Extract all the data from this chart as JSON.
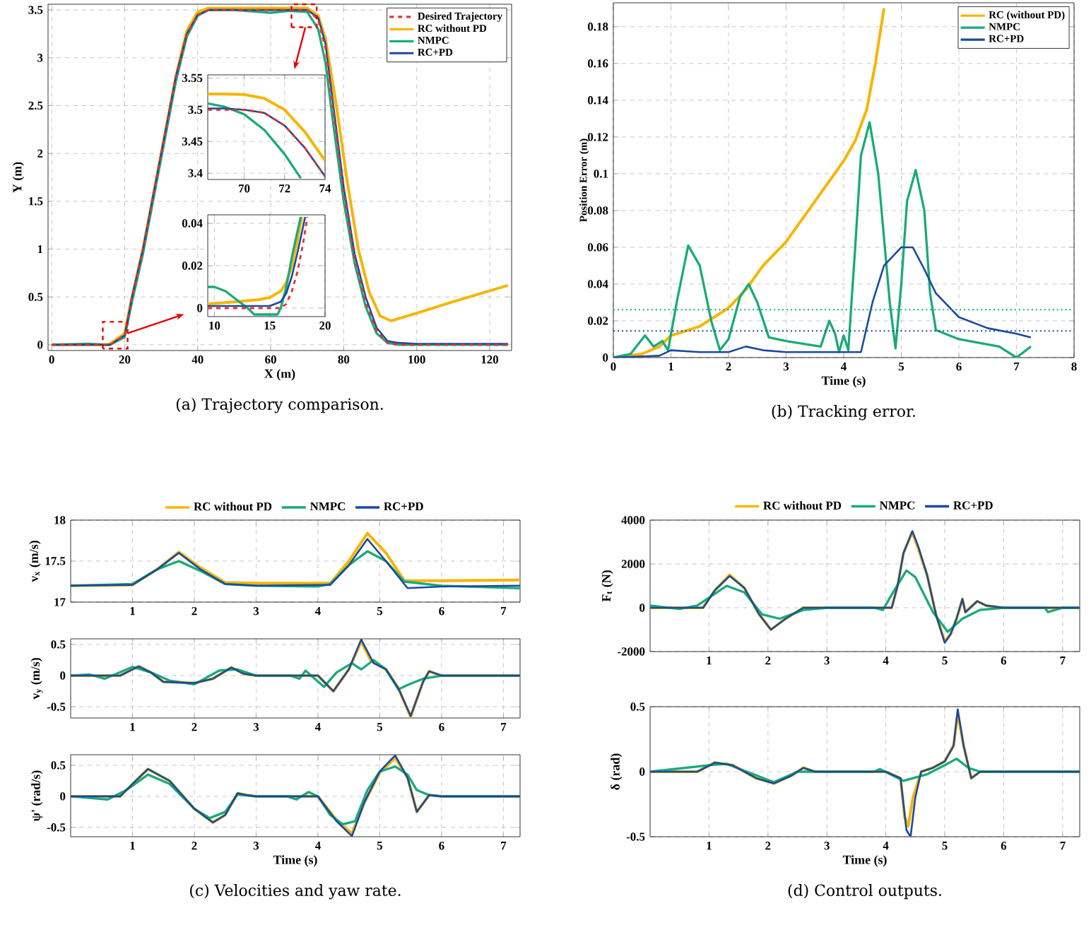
{
  "chart_data": [
    {
      "type": "line",
      "xlabel": "X (m)",
      "ylabel": "Y (m)",
      "xlim": [
        -1,
        126
      ],
      "ylim": [
        -0.06,
        3.56
      ],
      "xticks": [
        0,
        20,
        40,
        60,
        80,
        100,
        120
      ],
      "yticks": [
        0,
        0.5,
        1,
        1.5,
        2,
        2.5,
        3,
        3.5
      ],
      "grid": true,
      "legend": "top right",
      "annotations": [
        "(a) Trajectory comparison."
      ],
      "series": [
        {
          "name": "Desired Trajectory",
          "color": "#e8302a",
          "line_style": "dashed",
          "x": [
            0,
            15,
            16,
            20,
            22,
            25,
            28,
            31,
            34,
            37,
            40,
            43,
            50,
            60,
            70,
            73,
            75,
            77,
            80,
            83,
            86,
            89,
            92,
            95,
            100,
            125
          ],
          "values": [
            0,
            0,
            0,
            0.1,
            0.5,
            1.0,
            1.6,
            2.2,
            2.8,
            3.25,
            3.45,
            3.5,
            3.5,
            3.5,
            3.5,
            3.4,
            3.1,
            2.5,
            1.6,
            0.9,
            0.45,
            0.15,
            0.02,
            0,
            0,
            0
          ]
        },
        {
          "name": "RC without PD",
          "color": "#f7b500",
          "x": [
            0,
            15,
            16,
            20,
            22,
            25,
            28,
            31,
            34,
            37,
            40,
            43,
            50,
            60,
            70,
            73,
            75,
            78,
            81,
            84,
            87,
            90,
            93,
            100,
            110,
            125
          ],
          "values": [
            0,
            0,
            0.01,
            0.12,
            0.5,
            1.0,
            1.6,
            2.2,
            2.8,
            3.28,
            3.48,
            3.52,
            3.52,
            3.52,
            3.52,
            3.44,
            3.2,
            2.5,
            1.7,
            1.0,
            0.55,
            0.3,
            0.25,
            0.33,
            0.45,
            0.62
          ]
        },
        {
          "name": "NMPC",
          "color": "#1aaa7a",
          "x": [
            0,
            10,
            15,
            16,
            20,
            22,
            25,
            28,
            31,
            34,
            37,
            40,
            43,
            50,
            60,
            65,
            70,
            73,
            75,
            77,
            80,
            83,
            86,
            89,
            92,
            95,
            100,
            125
          ],
          "values": [
            0,
            0.01,
            0,
            0,
            0.08,
            0.45,
            0.95,
            1.55,
            2.15,
            2.75,
            3.22,
            3.44,
            3.5,
            3.5,
            3.47,
            3.49,
            3.48,
            3.3,
            2.95,
            2.35,
            1.5,
            0.85,
            0.4,
            0.12,
            0.02,
            0,
            0,
            0
          ]
        },
        {
          "name": "RC+PD",
          "color": "#1a4aa0",
          "x": [
            0,
            15,
            16,
            20,
            22,
            25,
            28,
            31,
            34,
            37,
            40,
            43,
            50,
            60,
            70,
            73,
            75,
            77,
            80,
            83,
            86,
            89,
            92,
            95,
            100,
            125
          ],
          "values": [
            0,
            0,
            0,
            0.1,
            0.5,
            1.0,
            1.6,
            2.2,
            2.8,
            3.25,
            3.45,
            3.5,
            3.5,
            3.5,
            3.5,
            3.42,
            3.15,
            2.55,
            1.65,
            0.95,
            0.5,
            0.18,
            0.04,
            0.02,
            0.01,
            0.01
          ]
        }
      ]
    },
    {
      "type": "line",
      "xlim": [
        68.2,
        74
      ],
      "ylim": [
        3.39,
        3.555
      ],
      "xticks": [
        70,
        72,
        74
      ],
      "yticks": [
        3.4,
        3.45,
        3.5,
        3.55
      ],
      "grid": true,
      "series": [
        {
          "color": "#e8302a",
          "line_style": "dashed",
          "x": [
            68.2,
            69,
            70,
            71,
            72,
            73,
            74
          ],
          "values": [
            3.5,
            3.5,
            3.5,
            3.495,
            3.475,
            3.44,
            3.395
          ]
        },
        {
          "color": "#f7b500",
          "x": [
            68.2,
            69,
            70,
            71,
            72,
            73,
            74
          ],
          "values": [
            3.525,
            3.525,
            3.524,
            3.518,
            3.5,
            3.465,
            3.42
          ]
        },
        {
          "color": "#1aaa7a",
          "x": [
            68.2,
            69,
            70,
            71,
            72,
            72.8
          ],
          "values": [
            3.51,
            3.505,
            3.493,
            3.468,
            3.43,
            3.392
          ]
        },
        {
          "color": "#1a4aa0",
          "x": [
            68.2,
            69,
            70,
            71,
            72,
            73,
            74
          ],
          "values": [
            3.502,
            3.502,
            3.5,
            3.495,
            3.475,
            3.44,
            3.395
          ]
        }
      ]
    },
    {
      "type": "line",
      "xlim": [
        9.4,
        20
      ],
      "ylim": [
        -0.004,
        0.044
      ],
      "xticks": [
        10,
        15,
        20
      ],
      "yticks": [
        0,
        0.02,
        0.04
      ],
      "grid": true,
      "series": [
        {
          "color": "#e8302a",
          "line_style": "dashed",
          "x": [
            9.4,
            15,
            16,
            16.5,
            17,
            17.5,
            18,
            18.4
          ],
          "values": [
            0,
            0,
            0,
            0.002,
            0.008,
            0.017,
            0.03,
            0.043
          ]
        },
        {
          "color": "#f7b500",
          "x": [
            9.4,
            12,
            14,
            15,
            16,
            16.5,
            17,
            17.5,
            17.9
          ],
          "values": [
            0.002,
            0.003,
            0.004,
            0.005,
            0.008,
            0.012,
            0.02,
            0.032,
            0.043
          ]
        },
        {
          "color": "#1aaa7a",
          "x": [
            9.4,
            10,
            11,
            12,
            13,
            13.6,
            15.7,
            16,
            16.5,
            17,
            17.5,
            17.8
          ],
          "values": [
            0.01,
            0.01,
            0.008,
            0.004,
            0,
            -0.003,
            -0.003,
            0,
            0.01,
            0.024,
            0.036,
            0.043
          ]
        },
        {
          "color": "#1a4aa0",
          "x": [
            9.4,
            15,
            16,
            16.5,
            17,
            17.5,
            18,
            18.2
          ],
          "values": [
            0.001,
            0.001,
            0.003,
            0.007,
            0.015,
            0.026,
            0.038,
            0.043
          ]
        }
      ]
    },
    {
      "type": "line",
      "xlabel": "Time (s)",
      "ylabel": "Position Error (m)",
      "xlim": [
        0,
        8
      ],
      "ylim": [
        0,
        0.193
      ],
      "xticks": [
        0,
        1,
        2,
        3,
        4,
        5,
        6,
        7,
        8
      ],
      "yticks": [
        0,
        0.02,
        0.04,
        0.06,
        0.08,
        0.1,
        0.12,
        0.14,
        0.16,
        0.18
      ],
      "grid": true,
      "legend": "top right",
      "annotations": [
        "(b) Tracking error."
      ],
      "ref_lines": [
        {
          "axis": "y",
          "value": 0.026,
          "color": "#1aaa7a",
          "line_style": "dotted"
        },
        {
          "axis": "y",
          "value": 0.0145,
          "color": "#1a4aa0",
          "line_style": "dotted"
        }
      ],
      "series": [
        {
          "name": "RC (without PD)",
          "color": "#f7b500",
          "x": [
            0,
            0.5,
            0.8,
            1,
            1.5,
            2,
            2.3,
            2.6,
            3,
            3.5,
            4,
            4.2,
            4.4,
            4.55,
            4.7
          ],
          "values": [
            0,
            0.002,
            0.006,
            0.012,
            0.017,
            0.027,
            0.037,
            0.05,
            0.063,
            0.085,
            0.107,
            0.118,
            0.135,
            0.16,
            0.19
          ]
        },
        {
          "name": "NMPC",
          "color": "#1aaa7a",
          "x": [
            0,
            0.3,
            0.55,
            0.7,
            0.85,
            0.95,
            1.1,
            1.3,
            1.5,
            1.7,
            1.85,
            2,
            2.2,
            2.35,
            2.5,
            2.7,
            3,
            3.6,
            3.75,
            3.85,
            3.92,
            4,
            4.08,
            4.2,
            4.3,
            4.45,
            4.6,
            4.8,
            4.9,
            5,
            5.1,
            5.25,
            5.4,
            5.5,
            5.6,
            6,
            6.7,
            7,
            7.25
          ],
          "values": [
            0,
            0.002,
            0.012,
            0.006,
            0.009,
            0.004,
            0.03,
            0.061,
            0.05,
            0.02,
            0.004,
            0.01,
            0.033,
            0.04,
            0.03,
            0.011,
            0.009,
            0.006,
            0.02,
            0.013,
            0.003,
            0.012,
            0.004,
            0.06,
            0.11,
            0.128,
            0.1,
            0.03,
            0.005,
            0.04,
            0.085,
            0.102,
            0.08,
            0.035,
            0.015,
            0.01,
            0.006,
            0,
            0.006
          ]
        },
        {
          "name": "RC+PD",
          "color": "#1a4aa0",
          "x": [
            0,
            0.8,
            1,
            1.5,
            2,
            2.3,
            2.6,
            3,
            4.3,
            4.5,
            4.7,
            5,
            5.2,
            5.4,
            5.6,
            6,
            6.5,
            7,
            7.25
          ],
          "values": [
            0,
            0.001,
            0.004,
            0.003,
            0.003,
            0.006,
            0.004,
            0.003,
            0.003,
            0.03,
            0.05,
            0.06,
            0.06,
            0.048,
            0.035,
            0.022,
            0.016,
            0.013,
            0.011
          ]
        }
      ]
    },
    {
      "type": "line",
      "ylabel": "v$_{x}$ (m/s)",
      "xlim": [
        0,
        7.27
      ],
      "ylim": [
        17,
        18
      ],
      "xticks": [
        1,
        2,
        3,
        4,
        5,
        6,
        7
      ],
      "yticks": [
        17,
        17.5,
        18
      ],
      "grid": true,
      "legend": "top",
      "series": [
        {
          "name": "RC without PD",
          "color": "#f7b500",
          "x": [
            0,
            1,
            1.4,
            1.75,
            2.1,
            2.5,
            3,
            4.2,
            4.5,
            4.8,
            5.1,
            5.4,
            6,
            7.27
          ],
          "values": [
            17.2,
            17.21,
            17.4,
            17.61,
            17.42,
            17.24,
            17.23,
            17.23,
            17.5,
            17.84,
            17.6,
            17.26,
            17.26,
            17.27
          ]
        },
        {
          "name": "NMPC",
          "color": "#1aaa7a",
          "x": [
            0,
            1,
            1.4,
            1.75,
            2.1,
            2.5,
            3,
            4,
            4.2,
            4.5,
            4.8,
            5.1,
            5.4,
            6,
            7.27
          ],
          "values": [
            17.2,
            17.22,
            17.4,
            17.5,
            17.38,
            17.22,
            17.2,
            17.19,
            17.22,
            17.45,
            17.62,
            17.5,
            17.25,
            17.2,
            17.17
          ]
        },
        {
          "name": "RC+PD",
          "color": "#1a4aa0",
          "x": [
            0,
            1,
            1.4,
            1.75,
            2.1,
            2.5,
            3,
            4.2,
            4.5,
            4.8,
            5.1,
            5.45,
            6,
            7.27
          ],
          "values": [
            17.2,
            17.21,
            17.4,
            17.6,
            17.4,
            17.22,
            17.2,
            17.21,
            17.45,
            17.77,
            17.5,
            17.17,
            17.19,
            17.2
          ]
        }
      ]
    },
    {
      "type": "line",
      "ylabel": "v$_{y}$ (m/s)",
      "xlim": [
        0,
        7.27
      ],
      "ylim": [
        -0.68,
        0.59
      ],
      "xticks": [
        1,
        2,
        3,
        4,
        5,
        6,
        7
      ],
      "yticks": [
        -0.5,
        0,
        0.5
      ],
      "grid": true,
      "series": [
        {
          "color": "#f7b500",
          "x": [
            0,
            0.8,
            1.1,
            1.3,
            1.5,
            2,
            2.3,
            2.6,
            2.8,
            3,
            4,
            4.25,
            4.5,
            4.7,
            4.85,
            5.1,
            5.3,
            5.5,
            5.7,
            5.8,
            6,
            7.27
          ],
          "values": [
            0,
            0,
            0.15,
            0.05,
            -0.1,
            -0.12,
            -0.05,
            0.13,
            0.03,
            0,
            0,
            -0.25,
            0.1,
            0.55,
            0.25,
            0.1,
            -0.2,
            -0.66,
            -0.1,
            0.07,
            0,
            0
          ]
        },
        {
          "color": "#1aaa7a",
          "x": [
            0,
            0.3,
            0.55,
            1,
            1.3,
            1.6,
            2,
            2.4,
            2.7,
            3,
            3.55,
            3.7,
            3.8,
            3.95,
            4.1,
            4.3,
            4.55,
            4.7,
            4.9,
            5.1,
            5.3,
            5.45,
            5.7,
            6,
            7.27
          ],
          "values": [
            0,
            0.02,
            -0.05,
            0.14,
            0.05,
            -0.08,
            -0.14,
            0.08,
            0.1,
            0,
            0,
            -0.05,
            0.08,
            -0.05,
            -0.18,
            0.05,
            0.2,
            0.1,
            0.25,
            0.1,
            -0.22,
            -0.15,
            -0.05,
            0,
            0
          ]
        },
        {
          "color": "#1a4aa0",
          "x": [
            0,
            0.8,
            1.1,
            1.3,
            1.5,
            2,
            2.3,
            2.6,
            2.8,
            3,
            4,
            4.25,
            4.5,
            4.7,
            4.9,
            5.1,
            5.3,
            5.5,
            5.7,
            5.8,
            6,
            7.27
          ],
          "values": [
            0,
            0,
            0.15,
            0.05,
            -0.1,
            -0.12,
            -0.05,
            0.13,
            0.03,
            0,
            0,
            -0.25,
            0.1,
            0.58,
            0.2,
            0.1,
            -0.2,
            -0.65,
            -0.1,
            0.07,
            0,
            0
          ]
        }
      ]
    },
    {
      "type": "line",
      "xlabel": "Time (s)",
      "ylabel": "ψ' (rad/s)",
      "xlim": [
        0,
        7.27
      ],
      "ylim": [
        -0.65,
        0.67
      ],
      "xticks": [
        1,
        2,
        3,
        4,
        5,
        6,
        7
      ],
      "yticks": [
        -0.5,
        0,
        0.5
      ],
      "grid": true,
      "annotations": [
        "(c) Velocities and yaw rate."
      ],
      "series": [
        {
          "color": "#f7b500",
          "x": [
            0,
            0.8,
            1,
            1.25,
            1.6,
            2,
            2.3,
            2.5,
            2.7,
            2.85,
            3,
            4,
            4.3,
            4.55,
            4.75,
            5,
            5.25,
            5.45,
            5.6,
            5.8,
            6,
            7.27
          ],
          "values": [
            0,
            0,
            0.2,
            0.44,
            0.25,
            -0.2,
            -0.42,
            -0.3,
            0.05,
            0.02,
            0,
            0,
            -0.38,
            -0.6,
            -0.1,
            0.38,
            0.62,
            0.3,
            -0.25,
            0.02,
            0,
            0
          ]
        },
        {
          "color": "#1aaa7a",
          "x": [
            0,
            0.6,
            0.9,
            1.25,
            1.6,
            2,
            2.25,
            2.5,
            2.7,
            3,
            3.5,
            3.65,
            3.85,
            4,
            4.2,
            4.4,
            4.6,
            4.8,
            5,
            5.25,
            5.45,
            5.6,
            5.8,
            6,
            7.27
          ],
          "values": [
            0,
            -0.05,
            0.1,
            0.35,
            0.2,
            -0.2,
            -0.35,
            -0.25,
            0.03,
            0,
            0,
            -0.05,
            0.07,
            0,
            -0.3,
            -0.45,
            -0.4,
            0.1,
            0.4,
            0.48,
            0.35,
            0.1,
            0.02,
            0,
            0
          ]
        },
        {
          "color": "#1a4aa0",
          "x": [
            0,
            0.8,
            1,
            1.25,
            1.6,
            2,
            2.3,
            2.5,
            2.7,
            2.85,
            3,
            4,
            4.3,
            4.55,
            4.75,
            5,
            5.25,
            5.45,
            5.6,
            5.8,
            6,
            7.27
          ],
          "values": [
            0,
            0,
            0.2,
            0.44,
            0.25,
            -0.2,
            -0.42,
            -0.3,
            0.05,
            0.02,
            0,
            0,
            -0.4,
            -0.64,
            -0.1,
            0.4,
            0.66,
            0.3,
            -0.25,
            0.02,
            0,
            0
          ]
        }
      ]
    },
    {
      "type": "line",
      "ylabel": "F$_{t}$ (N)",
      "xlim": [
        0,
        7.29
      ],
      "ylim": [
        -2000,
        4000
      ],
      "xticks": [
        1,
        2,
        3,
        4,
        5,
        6,
        7
      ],
      "yticks": [
        -2000,
        0,
        2000,
        4000
      ],
      "grid": true,
      "legend": "top",
      "series": [
        {
          "name": "RC without PD",
          "color": "#f7b500",
          "x": [
            0,
            0.9,
            1.1,
            1.35,
            1.6,
            1.85,
            2.05,
            2.3,
            2.6,
            3,
            4.1,
            4.2,
            4.3,
            4.45,
            4.55,
            4.7,
            4.85,
            5,
            5.1,
            5.2,
            5.3,
            5.35,
            5.55,
            5.7,
            6,
            7.29
          ],
          "values": [
            0,
            0,
            800,
            1500,
            900,
            -300,
            -1000,
            -500,
            0,
            0,
            0,
            1000,
            2500,
            3450,
            2700,
            1500,
            -300,
            -1550,
            -1200,
            -500,
            400,
            -200,
            300,
            100,
            0,
            0
          ]
        },
        {
          "name": "NMPC",
          "color": "#1aaa7a",
          "x": [
            0,
            0.5,
            0.8,
            1.3,
            1.6,
            1.9,
            2.2,
            2.6,
            3,
            3.8,
            3.95,
            4.1,
            4.35,
            4.5,
            4.8,
            5.05,
            5.3,
            5.6,
            6,
            6.7,
            6.75,
            7,
            7.29
          ],
          "values": [
            100,
            -50,
            100,
            1000,
            700,
            -300,
            -500,
            -100,
            0,
            0,
            -100,
            600,
            1700,
            1400,
            -200,
            -1100,
            -500,
            -100,
            0,
            0,
            -200,
            0,
            0
          ]
        },
        {
          "name": "RC+PD",
          "color": "#1a4aa0",
          "x": [
            0,
            0.9,
            1.1,
            1.35,
            1.6,
            1.85,
            2.05,
            2.3,
            2.6,
            3,
            4.1,
            4.2,
            4.3,
            4.45,
            4.55,
            4.7,
            4.85,
            5,
            5.1,
            5.2,
            5.3,
            5.35,
            5.55,
            5.7,
            6,
            7.29
          ],
          "values": [
            0,
            0,
            800,
            1450,
            900,
            -300,
            -1000,
            -500,
            0,
            0,
            0,
            1000,
            2500,
            3500,
            2800,
            1500,
            -300,
            -1600,
            -1200,
            -500,
            400,
            -200,
            300,
            100,
            0,
            0
          ]
        }
      ]
    },
    {
      "type": "line",
      "xlabel": "Time (s)",
      "ylabel": "δ (rad)",
      "xlim": [
        0,
        7.29
      ],
      "ylim": [
        -0.5,
        0.5
      ],
      "xticks": [
        1,
        2,
        3,
        4,
        5,
        6,
        7
      ],
      "yticks": [
        -0.5,
        0,
        0.5
      ],
      "grid": true,
      "annotations": [
        "(d) Control outputs."
      ],
      "series": [
        {
          "color": "#f7b500",
          "x": [
            0,
            0.8,
            1.1,
            1.4,
            1.8,
            2.1,
            2.4,
            2.6,
            2.8,
            4,
            4.25,
            4.32,
            4.38,
            4.46,
            4.6,
            4.8,
            5,
            5.15,
            5.22,
            5.32,
            5.45,
            5.6,
            7.29
          ],
          "values": [
            0,
            0,
            0.07,
            0.05,
            -0.05,
            -0.09,
            -0.03,
            0.03,
            0,
            0,
            -0.05,
            -0.35,
            -0.42,
            -0.2,
            0,
            0.03,
            0.08,
            0.2,
            0.45,
            0.2,
            -0.05,
            0,
            0
          ]
        },
        {
          "color": "#1aaa7a",
          "x": [
            0,
            1,
            1.3,
            2.1,
            2.5,
            3.8,
            3.9,
            4.3,
            4.7,
            5,
            5.2,
            5.4,
            5.6,
            7.29
          ],
          "values": [
            0,
            0.05,
            0.06,
            -0.08,
            0,
            0,
            0.02,
            -0.07,
            -0.02,
            0.05,
            0.1,
            0.03,
            0,
            0
          ]
        },
        {
          "color": "#1a4aa0",
          "x": [
            0,
            0.8,
            1.1,
            1.4,
            1.8,
            2.1,
            2.4,
            2.6,
            2.8,
            4,
            4.25,
            4.35,
            4.42,
            4.5,
            4.6,
            4.8,
            5,
            5.15,
            5.22,
            5.32,
            5.45,
            5.6,
            7.29
          ],
          "values": [
            0,
            0,
            0.07,
            0.05,
            -0.05,
            -0.09,
            -0.03,
            0.03,
            0,
            0,
            -0.05,
            -0.45,
            -0.5,
            -0.2,
            0,
            0.03,
            0.08,
            0.2,
            0.48,
            0.2,
            -0.05,
            0,
            0
          ]
        }
      ]
    }
  ]
}
